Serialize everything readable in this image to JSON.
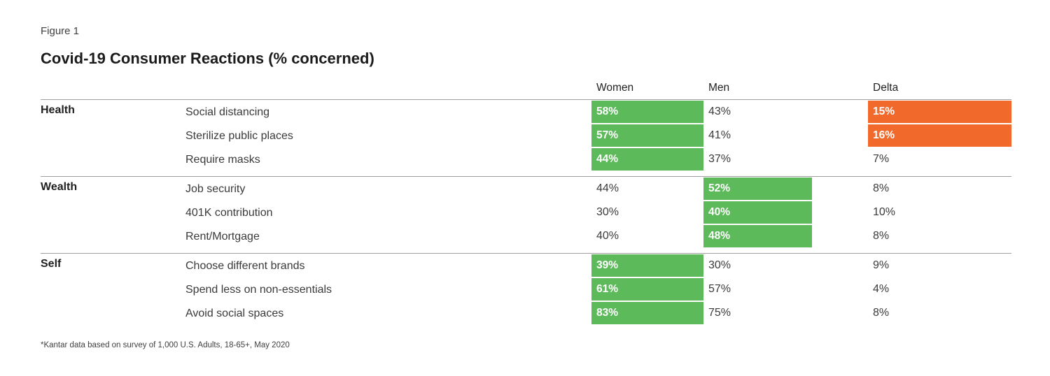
{
  "header": {
    "figure_label": "Figure 1",
    "title": "Covid-19 Consumer Reactions (% concerned)"
  },
  "table": {
    "columns": {
      "women": "Women",
      "men": "Men",
      "delta": "Delta"
    },
    "groups": [
      {
        "category": "Health",
        "rows": [
          {
            "item": "Social distancing",
            "women": "58%",
            "men": "43%",
            "delta": "15%"
          },
          {
            "item": "Sterilize public places",
            "women": "57%",
            "men": "41%",
            "delta": "16%"
          },
          {
            "item": "Require masks",
            "women": "44%",
            "men": "37%",
            "delta": "7%"
          }
        ]
      },
      {
        "category": "Wealth",
        "rows": [
          {
            "item": "Job security",
            "women": "44%",
            "men": "52%",
            "delta": "8%"
          },
          {
            "item": "401K contribution",
            "women": "30%",
            "men": "40%",
            "delta": "10%"
          },
          {
            "item": "Rent/Mortgage",
            "women": "40%",
            "men": "48%",
            "delta": "8%"
          }
        ]
      },
      {
        "category": "Self",
        "rows": [
          {
            "item": "Choose different brands",
            "women": "39%",
            "men": "30%",
            "delta": "9%"
          },
          {
            "item": "Spend less on non-essentials",
            "women": "61%",
            "men": "57%",
            "delta": "4%"
          },
          {
            "item": "Avoid social spaces",
            "women": "83%",
            "men": "75%",
            "delta": "8%"
          }
        ]
      }
    ]
  },
  "footnote": "*Kantar data based on survey of 1,000 U.S. Adults, 18-65+, May 2020",
  "colors": {
    "highlight_green": "#5CBA5A",
    "highlight_orange": "#F26A2B",
    "rule_gray": "#9F9F9F"
  },
  "chart_data": {
    "type": "table",
    "figure_label": "Figure 1",
    "title": "Covid-19 Consumer Reactions (% concerned)",
    "columns": [
      "Women",
      "Men",
      "Delta"
    ],
    "groups": [
      {
        "category": "Health",
        "rows": [
          {
            "item": "Social distancing",
            "women": 58,
            "men": 43,
            "delta": 15,
            "highlighted": [
              "women",
              "delta"
            ]
          },
          {
            "item": "Sterilize public places",
            "women": 57,
            "men": 41,
            "delta": 16,
            "highlighted": [
              "women",
              "delta"
            ]
          },
          {
            "item": "Require masks",
            "women": 44,
            "men": 37,
            "delta": 7,
            "highlighted": [
              "women"
            ]
          }
        ]
      },
      {
        "category": "Wealth",
        "rows": [
          {
            "item": "Job security",
            "women": 44,
            "men": 52,
            "delta": 8,
            "highlighted": [
              "men"
            ]
          },
          {
            "item": "401K contribution",
            "women": 30,
            "men": 40,
            "delta": 10,
            "highlighted": [
              "men"
            ]
          },
          {
            "item": "Rent/Mortgage",
            "women": 40,
            "men": 48,
            "delta": 8,
            "highlighted": [
              "men"
            ]
          }
        ]
      },
      {
        "category": "Self",
        "rows": [
          {
            "item": "Choose different brands",
            "women": 39,
            "men": 30,
            "delta": 9,
            "highlighted": [
              "women"
            ]
          },
          {
            "item": "Spend less on non-essentials",
            "women": 61,
            "men": 57,
            "delta": 4,
            "highlighted": [
              "women"
            ]
          },
          {
            "item": "Avoid social spaces",
            "women": 83,
            "men": 75,
            "delta": 8,
            "highlighted": [
              "women"
            ]
          }
        ]
      }
    ],
    "footnote": "*Kantar data based on survey of 1,000 U.S. Adults, 18-65+, May 2020",
    "legend": "none",
    "notes": "Green fill marks the higher of Women/Men per row; orange fill marks Delta values of 15% or more"
  }
}
